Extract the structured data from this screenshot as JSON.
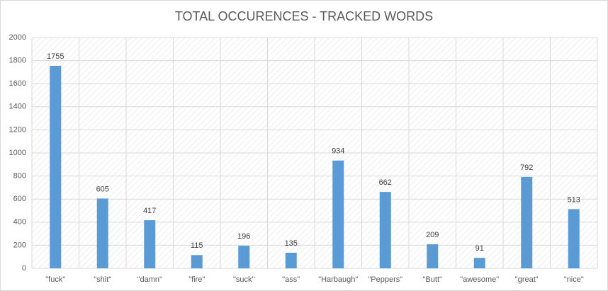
{
  "chart_data": {
    "type": "bar",
    "title": "TOTAL OCCURENCES - TRACKED WORDS",
    "categories": [
      "\"fuck\"",
      "\"shit\"",
      "\"damn\"",
      "\"fire\"",
      "\"suck\"",
      "\"ass\"",
      "\"Harbaugh\"",
      "\"Peppers\"",
      "\"Butt\"",
      "\"awesome\"",
      "\"great\"",
      "\"nice\""
    ],
    "values": [
      1755,
      605,
      417,
      115,
      196,
      135,
      934,
      662,
      209,
      91,
      792,
      513
    ],
    "color": "#5b9bd5",
    "ylim": [
      0,
      2000
    ],
    "yticks": [
      0,
      200,
      400,
      600,
      800,
      1000,
      1200,
      1400,
      1600,
      1800,
      2000
    ],
    "grid": true
  }
}
